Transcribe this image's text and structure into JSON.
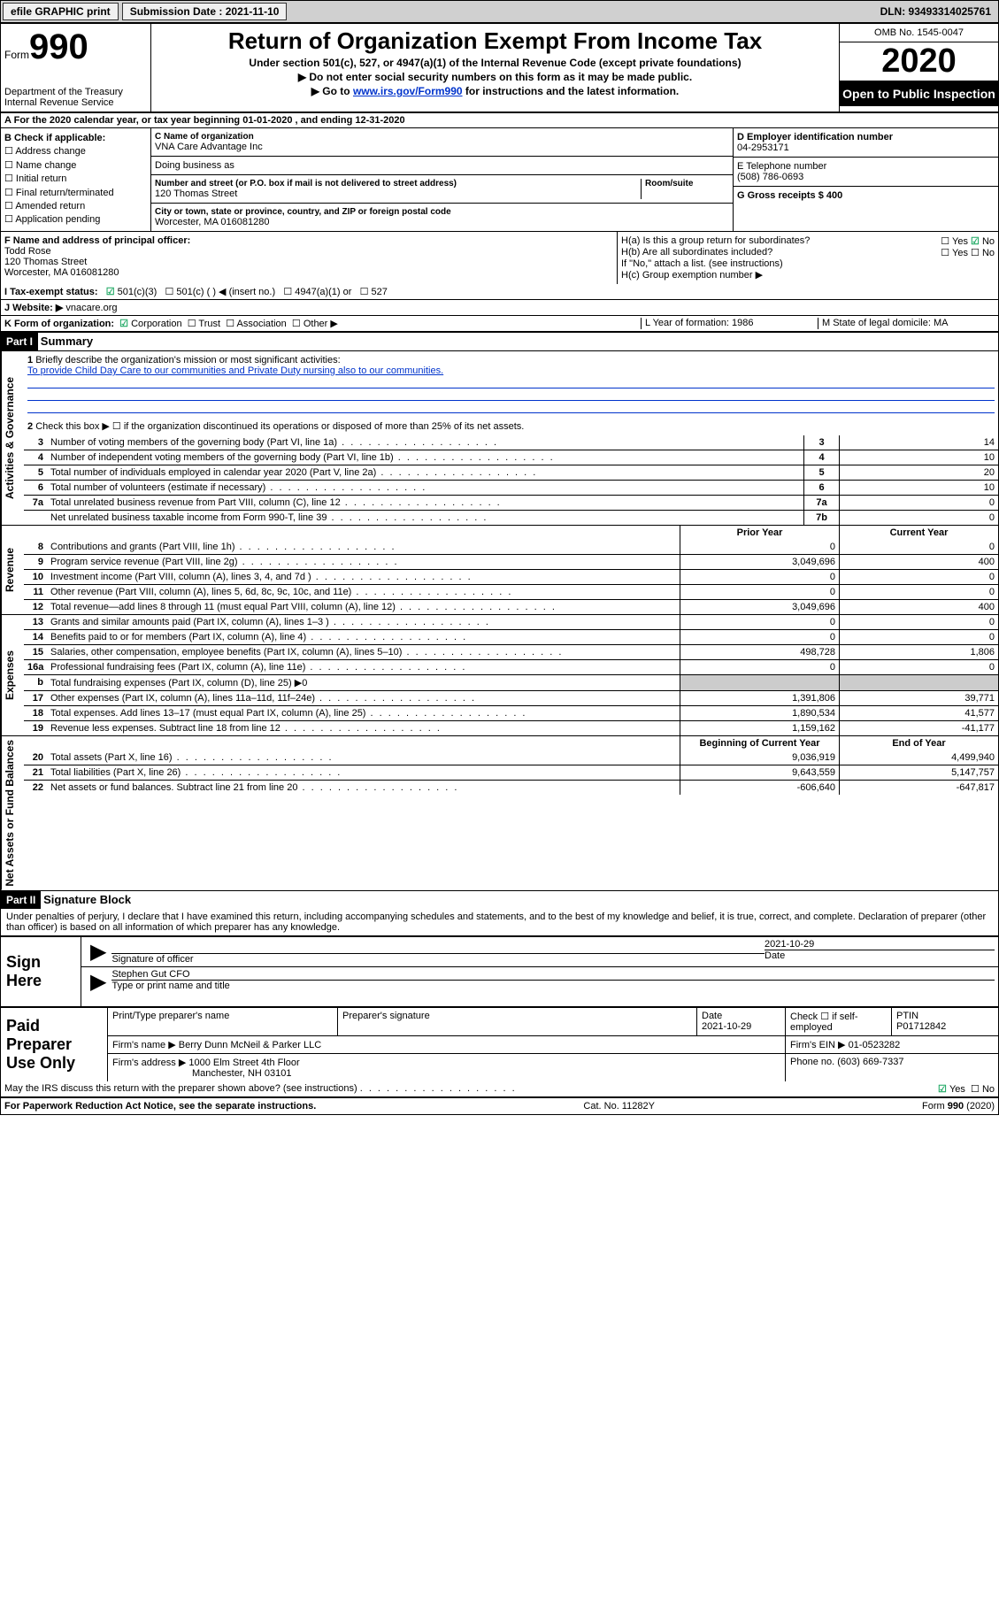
{
  "topbar": {
    "efile": "efile GRAPHIC print",
    "submission_lbl": "Submission Date :",
    "submission": "2021-11-10",
    "dln": "DLN: 93493314025761"
  },
  "header": {
    "form_lbl": "Form",
    "form_num": "990",
    "dept": "Department of the Treasury\nInternal Revenue Service",
    "title": "Return of Organization Exempt From Income Tax",
    "sub1": "Under section 501(c), 527, or 4947(a)(1) of the Internal Revenue Code (except private foundations)",
    "sub2": "▶ Do not enter social security numbers on this form as it may be made public.",
    "sub3_pre": "▶ Go to ",
    "sub3_link": "www.irs.gov/Form990",
    "sub3_post": " for instructions and the latest information.",
    "omb": "OMB No. 1545-0047",
    "year": "2020",
    "inspect": "Open to Public Inspection"
  },
  "lineA": "For the 2020 calendar year, or tax year beginning 01-01-2020   , and ending 12-31-2020",
  "colB": {
    "lbl": "B Check if applicable:",
    "items": [
      "Address change",
      "Name change",
      "Initial return",
      "Final return/terminated",
      "Amended return",
      "Application pending"
    ]
  },
  "colC": {
    "name_lbl": "C Name of organization",
    "name": "VNA Care Advantage Inc",
    "dba_lbl": "Doing business as",
    "addr_lbl": "Number and street (or P.O. box if mail is not delivered to street address)",
    "room_lbl": "Room/suite",
    "addr": "120 Thomas Street",
    "city_lbl": "City or town, state or province, country, and ZIP or foreign postal code",
    "city": "Worcester, MA  016081280"
  },
  "colD": {
    "ein_lbl": "D Employer identification number",
    "ein": "04-2953171",
    "tel_lbl": "E Telephone number",
    "tel": "(508) 786-0693",
    "gross_lbl": "G Gross receipts $ 400"
  },
  "rowF": {
    "f_lbl": "F Name and address of principal officer:",
    "f_name": "Todd Rose",
    "f_addr1": "120 Thomas Street",
    "f_addr2": "Worcester, MA  016081280",
    "ha": "H(a)  Is this a group return for subordinates?",
    "hb": "H(b)  Are all subordinates included?",
    "hb_note": "If \"No,\" attach a list. (see instructions)",
    "hc": "H(c)  Group exemption number ▶",
    "yes": "Yes",
    "no": "No"
  },
  "lineI": {
    "lbl": "I   Tax-exempt status:",
    "o1": "501(c)(3)",
    "o2": "501(c) (   ) ◀ (insert no.)",
    "o3": "4947(a)(1) or",
    "o4": "527"
  },
  "lineJ": {
    "lbl": "J   Website: ▶",
    "val": "vnacare.org"
  },
  "lineK": {
    "lbl": "K Form of organization:",
    "o1": "Corporation",
    "o2": "Trust",
    "o3": "Association",
    "o4": "Other ▶",
    "l_lbl": "L Year of formation: 1986",
    "m_lbl": "M State of legal domicile: MA"
  },
  "part1": {
    "hdr": "Part I",
    "title": "Summary",
    "q1_lbl": "1",
    "q1": "Briefly describe the organization's mission or most significant activities:",
    "q1_val": "To provide Child Day Care to our communities and Private Duty nursing also to our communities.",
    "q2": "Check this box ▶ ☐  if the organization discontinued its operations or disposed of more than 25% of its net assets.",
    "rows": [
      {
        "n": "3",
        "d": "Number of voting members of the governing body (Part VI, line 1a)",
        "b": "3",
        "v": "14"
      },
      {
        "n": "4",
        "d": "Number of independent voting members of the governing body (Part VI, line 1b)",
        "b": "4",
        "v": "10"
      },
      {
        "n": "5",
        "d": "Total number of individuals employed in calendar year 2020 (Part V, line 2a)",
        "b": "5",
        "v": "20"
      },
      {
        "n": "6",
        "d": "Total number of volunteers (estimate if necessary)",
        "b": "6",
        "v": "10"
      },
      {
        "n": "7a",
        "d": "Total unrelated business revenue from Part VIII, column (C), line 12",
        "b": "7a",
        "v": "0"
      },
      {
        "n": "",
        "d": "Net unrelated business taxable income from Form 990-T, line 39",
        "b": "7b",
        "v": "0"
      }
    ],
    "sidelabel_gov": "Activities & Governance",
    "col_prior": "Prior Year",
    "col_current": "Current Year",
    "revenue_rows": [
      {
        "n": "8",
        "d": "Contributions and grants (Part VIII, line 1h)",
        "p": "0",
        "c": "0"
      },
      {
        "n": "9",
        "d": "Program service revenue (Part VIII, line 2g)",
        "p": "3,049,696",
        "c": "400"
      },
      {
        "n": "10",
        "d": "Investment income (Part VIII, column (A), lines 3, 4, and 7d )",
        "p": "0",
        "c": "0"
      },
      {
        "n": "11",
        "d": "Other revenue (Part VIII, column (A), lines 5, 6d, 8c, 9c, 10c, and 11e)",
        "p": "0",
        "c": "0"
      },
      {
        "n": "12",
        "d": "Total revenue—add lines 8 through 11 (must equal Part VIII, column (A), line 12)",
        "p": "3,049,696",
        "c": "400"
      }
    ],
    "sidelabel_rev": "Revenue",
    "expense_rows": [
      {
        "n": "13",
        "d": "Grants and similar amounts paid (Part IX, column (A), lines 1–3 )",
        "p": "0",
        "c": "0"
      },
      {
        "n": "14",
        "d": "Benefits paid to or for members (Part IX, column (A), line 4)",
        "p": "0",
        "c": "0"
      },
      {
        "n": "15",
        "d": "Salaries, other compensation, employee benefits (Part IX, column (A), lines 5–10)",
        "p": "498,728",
        "c": "1,806"
      },
      {
        "n": "16a",
        "d": "Professional fundraising fees (Part IX, column (A), line 11e)",
        "p": "0",
        "c": "0"
      },
      {
        "n": "b",
        "d": "Total fundraising expenses (Part IX, column (D), line 25) ▶0",
        "p": "",
        "c": "",
        "shaded": true
      },
      {
        "n": "17",
        "d": "Other expenses (Part IX, column (A), lines 11a–11d, 11f–24e)",
        "p": "1,391,806",
        "c": "39,771"
      },
      {
        "n": "18",
        "d": "Total expenses. Add lines 13–17 (must equal Part IX, column (A), line 25)",
        "p": "1,890,534",
        "c": "41,577"
      },
      {
        "n": "19",
        "d": "Revenue less expenses. Subtract line 18 from line 12",
        "p": "1,159,162",
        "c": "-41,177"
      }
    ],
    "sidelabel_exp": "Expenses",
    "col_begin": "Beginning of Current Year",
    "col_end": "End of Year",
    "net_rows": [
      {
        "n": "20",
        "d": "Total assets (Part X, line 16)",
        "p": "9,036,919",
        "c": "4,499,940"
      },
      {
        "n": "21",
        "d": "Total liabilities (Part X, line 26)",
        "p": "9,643,559",
        "c": "5,147,757"
      },
      {
        "n": "22",
        "d": "Net assets or fund balances. Subtract line 21 from line 20",
        "p": "-606,640",
        "c": "-647,817"
      }
    ],
    "sidelabel_net": "Net Assets or Fund Balances"
  },
  "part2": {
    "hdr": "Part II",
    "title": "Signature Block",
    "perjury": "Under penalties of perjury, I declare that I have examined this return, including accompanying schedules and statements, and to the best of my knowledge and belief, it is true, correct, and complete. Declaration of preparer (other than officer) is based on all information of which preparer has any knowledge."
  },
  "sign": {
    "lbl": "Sign Here",
    "sig_lbl": "Signature of officer",
    "date_lbl": "Date",
    "date": "2021-10-29",
    "name": "Stephen Gut  CFO",
    "name_lbl": "Type or print name and title"
  },
  "paid": {
    "lbl": "Paid Preparer Use Only",
    "prep_name_lbl": "Print/Type preparer's name",
    "prep_sig_lbl": "Preparer's signature",
    "date_lbl": "Date",
    "date": "2021-10-29",
    "self_lbl": "Check ☐ if self-employed",
    "ptin_lbl": "PTIN",
    "ptin": "P01712842",
    "firm_name_lbl": "Firm's name    ▶",
    "firm_name": "Berry Dunn McNeil & Parker LLC",
    "firm_ein_lbl": "Firm's EIN ▶",
    "firm_ein": "01-0523282",
    "firm_addr_lbl": "Firm's address ▶",
    "firm_addr1": "1000 Elm Street 4th Floor",
    "firm_addr2": "Manchester, NH  03101",
    "phone_lbl": "Phone no.",
    "phone": "(603) 669-7337"
  },
  "discuss": {
    "q": "May the IRS discuss this return with the preparer shown above? (see instructions)",
    "yes": "Yes",
    "no": "No"
  },
  "footer": {
    "left": "For Paperwork Reduction Act Notice, see the separate instructions.",
    "mid": "Cat. No. 11282Y",
    "right": "Form 990 (2020)"
  }
}
